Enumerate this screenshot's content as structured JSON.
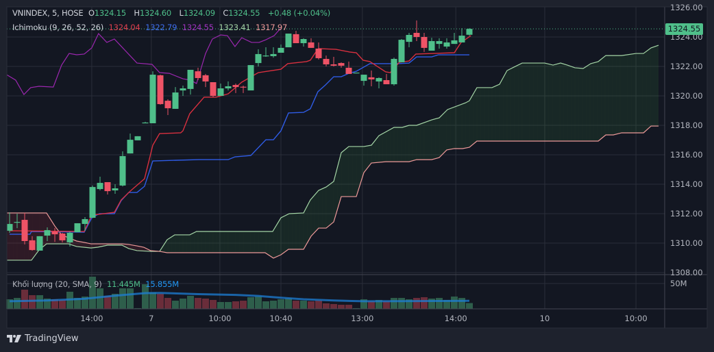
{
  "legend": {
    "symbol": "VNINDEX, 5, HOSE",
    "open_label": "O",
    "open": "1324.15",
    "high_label": "H",
    "high": "1324.60",
    "low_label": "L",
    "low": "1324.09",
    "close_label": "C",
    "close": "1324.55",
    "change": "+0.48 (+0.04%)",
    "indicator": "Ichimoku (9, 26, 52, 26)",
    "conversion": "1324.04",
    "base": "1322.79",
    "lagging": "1324.55",
    "span_a": "1323.41",
    "span_b": "1317.97",
    "volume_label": "Khối lượng (20, SMA, 9)",
    "volume_value": "11.445M",
    "volume_sma": "15.855M"
  },
  "last_price": "1324.55",
  "branding": "TradingView",
  "colors": {
    "up": "#4fbf8a",
    "down": "#ef5366",
    "vol_up": "#2e5e4b",
    "vol_down": "#6a2d3a",
    "conversion": "#d9303f",
    "base": "#2f5ce6",
    "lagging": "#9c27b0",
    "span_a": "#a5d6a7",
    "span_b": "#ef9a9a",
    "volume_sma": "#1e7fd6"
  },
  "chart_data": {
    "type": "candlestick",
    "price_axis": {
      "ticks": [
        "1326.00",
        "1324.00",
        "1322.00",
        "1320.00",
        "1318.00",
        "1316.00",
        "1314.00",
        "1312.00",
        "1310.00",
        "1308.00"
      ],
      "range": [
        1308,
        1326
      ]
    },
    "volume_axis": {
      "ticks": [
        "50M"
      ]
    },
    "time_axis": [
      {
        "bar": 10.9,
        "label": "14:00"
      },
      {
        "bar": 18.8,
        "label": "7"
      },
      {
        "bar": 27.9,
        "label": "10:00"
      },
      {
        "bar": 36,
        "label": "10:40"
      },
      {
        "bar": 46.8,
        "label": "13:00"
      },
      {
        "bar": 59.2,
        "label": "14:00"
      },
      {
        "bar": 71,
        "label": "10"
      },
      {
        "bar": 83.1,
        "label": "10:00"
      }
    ],
    "candles_ohlc": [
      [
        1310.84,
        1312.09,
        1310.7,
        1311.3
      ],
      [
        1311.4,
        1312.0,
        1311.02,
        1311.44
      ],
      [
        1311.58,
        1312.05,
        1309.91,
        1310.14
      ],
      [
        1310.19,
        1310.47,
        1309.49,
        1309.53
      ],
      [
        1309.49,
        1310.47,
        1309.49,
        1310.47
      ],
      [
        1310.51,
        1311.07,
        1310.14,
        1310.88
      ],
      [
        1310.79,
        1311.02,
        1310.09,
        1310.6
      ],
      [
        1310.65,
        1310.7,
        1310.05,
        1310.19
      ],
      [
        1310.05,
        1310.79,
        1309.77,
        1310.7
      ],
      [
        1310.74,
        1311.35,
        1310.74,
        1311.35
      ],
      [
        1311.3,
        1311.77,
        1310.84,
        1311.63
      ],
      [
        1311.72,
        1313.91,
        1311.7,
        1313.81
      ],
      [
        1313.67,
        1314.51,
        1313.58,
        1314.09
      ],
      [
        1314.14,
        1314.14,
        1313.3,
        1313.53
      ],
      [
        1313.58,
        1314.0,
        1313.35,
        1313.72
      ],
      [
        1313.91,
        1316.23,
        1313.85,
        1315.91
      ],
      [
        1316.09,
        1317.44,
        1316.09,
        1317.02
      ],
      [
        1316.98,
        1317.26,
        1316.98,
        1317.26
      ],
      [
        1318.14,
        1318.24,
        1318.14,
        1318.19
      ],
      [
        1318.14,
        1321.67,
        1318.14,
        1321.44
      ],
      [
        1321.4,
        1321.44,
        1319.4,
        1319.44
      ],
      [
        1319.67,
        1319.77,
        1318.7,
        1319.16
      ],
      [
        1319.12,
        1320.6,
        1319.12,
        1320.23
      ],
      [
        1320.37,
        1320.7,
        1320.0,
        1320.51
      ],
      [
        1320.47,
        1321.77,
        1320.09,
        1321.77
      ],
      [
        1321.67,
        1321.91,
        1321.07,
        1321.21
      ],
      [
        1321.4,
        1321.49,
        1320.6,
        1320.98
      ],
      [
        1320.93,
        1320.93,
        1319.91,
        1320.0
      ],
      [
        1320.0,
        1320.84,
        1320.0,
        1320.51
      ],
      [
        1320.51,
        1320.98,
        1320.37,
        1320.65
      ],
      [
        1320.74,
        1320.84,
        1320.19,
        1320.6
      ],
      [
        1320.62,
        1320.7,
        1320.19,
        1320.6
      ],
      [
        1320.37,
        1322.09,
        1320.37,
        1322.09
      ],
      [
        1322.23,
        1323.16,
        1322.0,
        1322.84
      ],
      [
        1322.7,
        1323.3,
        1322.65,
        1322.74
      ],
      [
        1322.7,
        1323.3,
        1322.6,
        1322.84
      ],
      [
        1322.93,
        1323.49,
        1322.93,
        1323.26
      ],
      [
        1323.3,
        1324.23,
        1323.3,
        1324.23
      ],
      [
        1324.19,
        1324.42,
        1323.58,
        1323.58
      ],
      [
        1323.58,
        1323.91,
        1323.35,
        1323.86
      ],
      [
        1323.63,
        1323.91,
        1323.26,
        1323.26
      ],
      [
        1323.21,
        1323.63,
        1322.47,
        1322.56
      ],
      [
        1322.51,
        1322.74,
        1322.0,
        1322.14
      ],
      [
        1322.14,
        1322.65,
        1322.0,
        1322.05
      ],
      [
        1322.23,
        1322.28,
        1321.91,
        1322.05
      ],
      [
        1321.91,
        1322.33,
        1321.49,
        1321.49
      ],
      [
        1321.53,
        1321.58,
        1321.53,
        1321.58
      ],
      [
        1321.02,
        1321.44,
        1320.7,
        1321.44
      ],
      [
        1321.26,
        1321.72,
        1320.65,
        1321.12
      ],
      [
        1320.98,
        1321.26,
        1320.51,
        1321.21
      ],
      [
        1321.07,
        1321.49,
        1320.79,
        1320.79
      ],
      [
        1320.79,
        1322.6,
        1320.7,
        1322.51
      ],
      [
        1322.28,
        1323.86,
        1322.28,
        1323.81
      ],
      [
        1323.67,
        1324.28,
        1323.3,
        1324.14
      ],
      [
        1324.28,
        1325.12,
        1323.72,
        1324.0
      ],
      [
        1324.0,
        1324.28,
        1322.98,
        1323.26
      ],
      [
        1323.07,
        1323.95,
        1323.07,
        1323.72
      ],
      [
        1323.53,
        1323.91,
        1323.21,
        1323.72
      ],
      [
        1323.35,
        1323.91,
        1323.21,
        1323.63
      ],
      [
        1323.53,
        1324.28,
        1323.53,
        1323.77
      ],
      [
        1323.63,
        1324.6,
        1323.63,
        1324.09
      ],
      [
        1324.15,
        1324.6,
        1324.09,
        1324.55
      ]
    ],
    "volume_millions": [
      18.9,
      21.6,
      37.8,
      27,
      27,
      20.3,
      18.9,
      17.6,
      33.8,
      21.6,
      24.3,
      63.5,
      40.5,
      25.7,
      29.7,
      40.5,
      40.5,
      1.4,
      48.6,
      32.4,
      29.7,
      21.6,
      16.2,
      20.3,
      25.7,
      21.6,
      20.3,
      17.6,
      13.5,
      13.5,
      14.9,
      16.2,
      23,
      24.3,
      14.9,
      16.2,
      18.9,
      20.3,
      16.2,
      16.2,
      14.9,
      16.2,
      10.8,
      9.5,
      8.1,
      8.1,
      1.4,
      18.9,
      14.9,
      17.6,
      14.9,
      21.6,
      21.6,
      18.9,
      21.6,
      23,
      20.3,
      21.6,
      17.6,
      24.3,
      21.6,
      11.445
    ],
    "volume_sma_points": [
      [
        0,
        15
      ],
      [
        5,
        16.5
      ],
      [
        10,
        20
      ],
      [
        14,
        26
      ],
      [
        18,
        31
      ],
      [
        20,
        31.5
      ],
      [
        25,
        29
      ],
      [
        30,
        27.5
      ],
      [
        33,
        25.5
      ],
      [
        36,
        22
      ],
      [
        39,
        19
      ],
      [
        43,
        16.5
      ],
      [
        47,
        15
      ],
      [
        52,
        15.2
      ],
      [
        57,
        15.6
      ],
      [
        61,
        15.855
      ]
    ],
    "conversion_line": [
      [
        0,
        1310.84
      ],
      [
        9.9,
        1310.79
      ],
      [
        10.9,
        1311.9
      ],
      [
        13.9,
        1312.09
      ],
      [
        14.8,
        1312.93
      ],
      [
        16.0,
        1313.53
      ],
      [
        17.9,
        1314.37
      ],
      [
        19.0,
        1316.65
      ],
      [
        19.9,
        1317.44
      ],
      [
        22.7,
        1317.49
      ],
      [
        23.0,
        1317.63
      ],
      [
        23.9,
        1318.79
      ],
      [
        25.8,
        1319.91
      ],
      [
        27.4,
        1319.91
      ],
      [
        29.0,
        1320.14
      ],
      [
        30.8,
        1320.93
      ],
      [
        33.0,
        1321.58
      ],
      [
        36.0,
        1321.81
      ],
      [
        36.9,
        1322.19
      ],
      [
        39.4,
        1322.33
      ],
      [
        39.9,
        1322.42
      ],
      [
        40.5,
        1322.88
      ],
      [
        41,
        1323.21
      ],
      [
        43.3,
        1323.16
      ],
      [
        45.1,
        1322.98
      ],
      [
        46,
        1322.93
      ],
      [
        46.9,
        1322.42
      ],
      [
        47.8,
        1322.33
      ],
      [
        49.9,
        1321.63
      ],
      [
        50.5,
        1321.58
      ],
      [
        51.7,
        1322.28
      ],
      [
        53,
        1322.37
      ],
      [
        53.9,
        1322.84
      ],
      [
        59,
        1322.93
      ],
      [
        59.9,
        1323.63
      ],
      [
        61.2,
        1324.09
      ]
    ],
    "base_line": [
      [
        0,
        1310.6
      ],
      [
        2.7,
        1310.6
      ],
      [
        2.9,
        1310.79
      ],
      [
        9.9,
        1310.74
      ],
      [
        10.9,
        1311.72
      ],
      [
        11.9,
        1312.0
      ],
      [
        13.9,
        1312.0
      ],
      [
        14.8,
        1312.88
      ],
      [
        15.8,
        1313.44
      ],
      [
        16.9,
        1313.44
      ],
      [
        17.9,
        1313.86
      ],
      [
        19.0,
        1315.58
      ],
      [
        25.1,
        1315.67
      ],
      [
        29.0,
        1315.67
      ],
      [
        29.9,
        1315.86
      ],
      [
        32.0,
        1315.95
      ],
      [
        34.0,
        1317.02
      ],
      [
        35.0,
        1317.02
      ],
      [
        36.0,
        1317.63
      ],
      [
        37.0,
        1318.84
      ],
      [
        39.0,
        1318.88
      ],
      [
        39.9,
        1319.12
      ],
      [
        40.9,
        1320.28
      ],
      [
        41.9,
        1320.74
      ],
      [
        43.0,
        1321.3
      ],
      [
        44.0,
        1321.3
      ],
      [
        45.0,
        1321.53
      ],
      [
        46.0,
        1321.67
      ],
      [
        47.8,
        1322.19
      ],
      [
        51.5,
        1322.19
      ],
      [
        53.0,
        1322.23
      ],
      [
        54.0,
        1322.65
      ],
      [
        56.0,
        1322.65
      ],
      [
        56.9,
        1322.79
      ],
      [
        61.0,
        1322.79
      ]
    ],
    "lagging_line": [
      [
        -0.4,
        1321.44
      ],
      [
        0.8,
        1321.07
      ],
      [
        1.9,
        1320.09
      ],
      [
        2.8,
        1320.56
      ],
      [
        3.9,
        1320.65
      ],
      [
        5.8,
        1320.6
      ],
      [
        6.9,
        1322.09
      ],
      [
        7.9,
        1322.88
      ],
      [
        8.9,
        1322.79
      ],
      [
        9.9,
        1322.84
      ],
      [
        10.9,
        1323.26
      ],
      [
        11.8,
        1324.23
      ],
      [
        12.9,
        1323.63
      ],
      [
        13.9,
        1323.86
      ],
      [
        16.9,
        1322.23
      ],
      [
        18.9,
        1322.14
      ],
      [
        19.9,
        1321.58
      ],
      [
        21.2,
        1321.53
      ],
      [
        23,
        1321.16
      ],
      [
        24,
        1321.07
      ],
      [
        24.8,
        1320.84
      ],
      [
        25.4,
        1321.86
      ],
      [
        26,
        1322.88
      ],
      [
        26.9,
        1323.86
      ],
      [
        28,
        1324.14
      ],
      [
        28.9,
        1324.09
      ],
      [
        29.9,
        1323.35
      ],
      [
        30.8,
        1323.95
      ],
      [
        32.1,
        1323.63
      ],
      [
        33.1,
        1323.63
      ],
      [
        34,
        1323.81
      ],
      [
        35.1,
        1324.09
      ],
      [
        35.9,
        1324.56
      ]
    ],
    "span_a": [
      [
        -0.4,
        1308.84
      ],
      [
        2.9,
        1308.84
      ],
      [
        3.9,
        1309.53
      ],
      [
        4.9,
        1309.95
      ],
      [
        7.8,
        1309.95
      ],
      [
        8.9,
        1309.77
      ],
      [
        10.8,
        1309.67
      ],
      [
        11.7,
        1309.72
      ],
      [
        13,
        1309.86
      ],
      [
        14.9,
        1309.86
      ],
      [
        15.8,
        1309.63
      ],
      [
        16.9,
        1309.49
      ],
      [
        18.7,
        1309.44
      ],
      [
        19.9,
        1309.44
      ],
      [
        20.9,
        1310.23
      ],
      [
        21.9,
        1310.56
      ],
      [
        23.9,
        1310.56
      ],
      [
        24.8,
        1310.79
      ],
      [
        34.9,
        1310.79
      ],
      [
        36,
        1311.72
      ],
      [
        37.1,
        1312.0
      ],
      [
        39,
        1312.05
      ],
      [
        39.9,
        1312.93
      ],
      [
        41,
        1313.58
      ],
      [
        42,
        1313.81
      ],
      [
        43,
        1314.19
      ],
      [
        44,
        1316.14
      ],
      [
        45,
        1316.56
      ],
      [
        47,
        1316.56
      ],
      [
        48,
        1316.65
      ],
      [
        49,
        1317.3
      ],
      [
        51,
        1317.86
      ],
      [
        52.1,
        1317.86
      ],
      [
        53,
        1318.0
      ],
      [
        54,
        1318.0
      ],
      [
        56,
        1318.37
      ],
      [
        57,
        1318.51
      ],
      [
        58.1,
        1319.07
      ],
      [
        60.5,
        1319.53
      ],
      [
        61,
        1319.67
      ],
      [
        62,
        1320.56
      ],
      [
        64,
        1320.56
      ],
      [
        65,
        1320.79
      ],
      [
        66,
        1321.72
      ],
      [
        66.9,
        1321.95
      ],
      [
        68,
        1322.23
      ],
      [
        71,
        1322.23
      ],
      [
        72.1,
        1322.09
      ],
      [
        73.1,
        1322.23
      ],
      [
        74,
        1322.09
      ],
      [
        75,
        1321.91
      ],
      [
        76.1,
        1321.86
      ],
      [
        77.1,
        1322.19
      ],
      [
        78.1,
        1322.33
      ],
      [
        79.1,
        1322.74
      ],
      [
        81.2,
        1322.74
      ],
      [
        83.1,
        1322.88
      ],
      [
        84.1,
        1322.88
      ],
      [
        85.1,
        1323.26
      ],
      [
        86.1,
        1323.44
      ]
    ],
    "span_b": [
      [
        -0.4,
        1312.05
      ],
      [
        4.9,
        1312.05
      ],
      [
        6,
        1311.16
      ],
      [
        6.9,
        1310.56
      ],
      [
        7.8,
        1310.37
      ],
      [
        8.9,
        1310.14
      ],
      [
        9.9,
        1310.05
      ],
      [
        10.8,
        1309.95
      ],
      [
        14.9,
        1309.95
      ],
      [
        15.8,
        1309.91
      ],
      [
        16.9,
        1309.81
      ],
      [
        17.8,
        1309.72
      ],
      [
        18.7,
        1309.49
      ],
      [
        19.9,
        1309.44
      ],
      [
        20.9,
        1309.35
      ],
      [
        33.9,
        1309.35
      ],
      [
        35,
        1308.98
      ],
      [
        36,
        1309.21
      ],
      [
        37,
        1309.58
      ],
      [
        39,
        1309.58
      ],
      [
        40,
        1310.47
      ],
      [
        41,
        1311.02
      ],
      [
        42,
        1311.02
      ],
      [
        43,
        1311.44
      ],
      [
        44,
        1313.16
      ],
      [
        46,
        1313.16
      ],
      [
        47,
        1314.79
      ],
      [
        48,
        1315.44
      ],
      [
        49.9,
        1315.53
      ],
      [
        53,
        1315.53
      ],
      [
        54,
        1315.67
      ],
      [
        56,
        1315.67
      ],
      [
        57,
        1315.81
      ],
      [
        58,
        1316.33
      ],
      [
        59,
        1316.42
      ],
      [
        60.1,
        1316.42
      ],
      [
        61,
        1316.51
      ],
      [
        62,
        1316.93
      ],
      [
        78.1,
        1316.93
      ],
      [
        79.1,
        1317.35
      ],
      [
        80.1,
        1317.35
      ],
      [
        81.2,
        1317.49
      ],
      [
        84.1,
        1317.49
      ],
      [
        85.1,
        1317.95
      ],
      [
        86.1,
        1317.95
      ]
    ]
  }
}
